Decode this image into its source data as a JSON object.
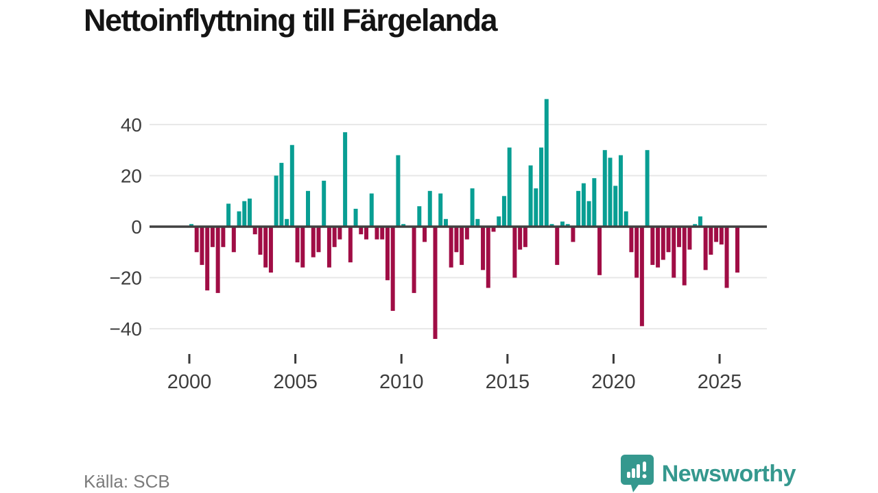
{
  "title": "Nettoinflyttning till Färgelanda",
  "source": "Källa: SCB",
  "branding": {
    "name": "Newsworthy",
    "logo_icon": "bar-chart-speech-bubble-icon",
    "color": "#35988e"
  },
  "chart_data": {
    "type": "bar",
    "title": "Nettoinflyttning till Färgelanda",
    "xlabel": "",
    "ylabel": "",
    "frequency": "quarterly",
    "start_year": 2000,
    "series": [
      {
        "name": "Nettoinflyttning",
        "values": [
          1,
          -10,
          -15,
          -25,
          -8,
          -26,
          -8,
          9,
          -10,
          6,
          10,
          11,
          -3,
          -11,
          -16,
          -18,
          20,
          25,
          3,
          32,
          -14,
          -16,
          14,
          -12,
          -10,
          18,
          -16,
          -8,
          -5,
          37,
          -14,
          7,
          -3,
          -5,
          13,
          -5,
          -5,
          -21,
          -33,
          28,
          1,
          0,
          -26,
          8,
          -6,
          14,
          -44,
          13,
          3,
          -16,
          -10,
          -15,
          -5,
          15,
          3,
          -17,
          -24,
          -2,
          4,
          12,
          31,
          -20,
          -9,
          -8,
          24,
          15,
          31,
          50,
          1,
          -15,
          2,
          1,
          -6,
          14,
          17,
          10,
          19,
          -19,
          30,
          27,
          16,
          28,
          6,
          -10,
          -20,
          -39,
          30,
          -15,
          -16,
          -13,
          -10,
          -20,
          -8,
          -23,
          -9,
          1,
          4,
          -17,
          -11,
          -6,
          -7,
          -24,
          0,
          -18
        ]
      }
    ],
    "yticks": [
      40,
      20,
      0,
      -20,
      -40
    ],
    "ylim": [
      -47,
      53
    ],
    "xticks": [
      2000,
      2005,
      2010,
      2015,
      2020,
      2025
    ],
    "grid": true,
    "legend": "none",
    "colors": {
      "positive": "#089e93",
      "negative": "#a00d45",
      "zero_line": "#404040",
      "gridline": "#e7e7e7",
      "tick": "#3a3a3a",
      "label": "#3d3d3d"
    }
  }
}
